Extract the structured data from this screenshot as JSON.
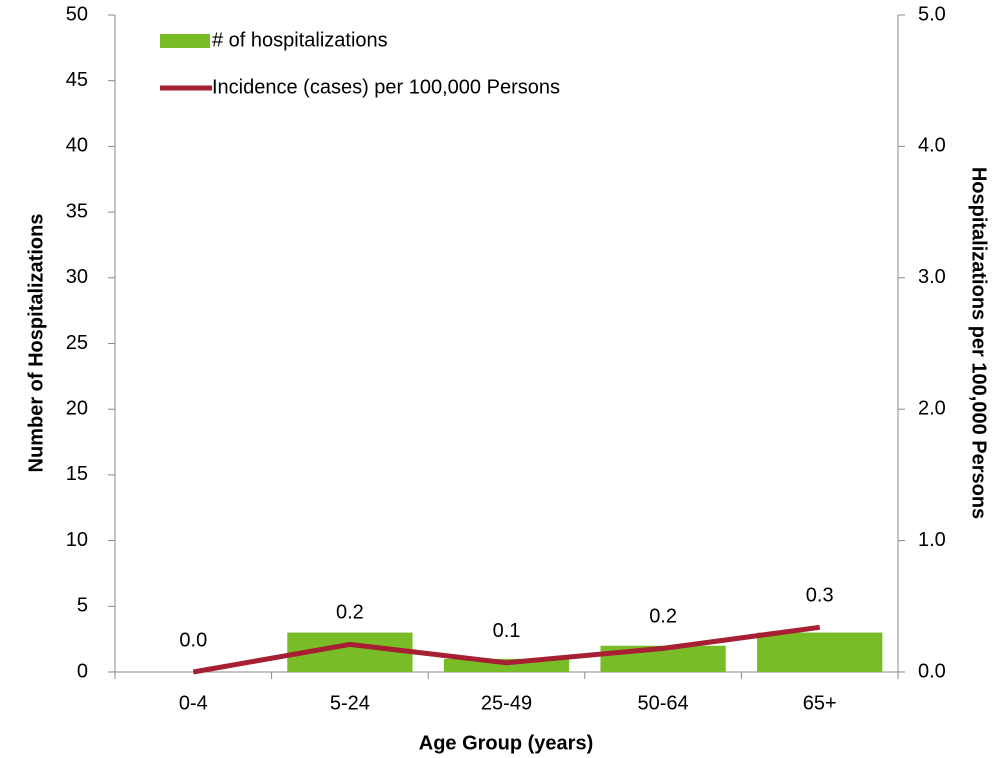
{
  "chart_data": {
    "type": "bar",
    "x_label": "Age Group (years)",
    "y_label": "Number of Hospitalizations",
    "y2_label": "Hospitalizations per 100,000 Persons",
    "categories": [
      "0-4",
      "5-24",
      "25-49",
      "50-64",
      "65+"
    ],
    "series": [
      {
        "name": "# of hospitalizations",
        "type": "bar",
        "color": "#78bc27",
        "values": [
          0,
          3,
          1,
          2,
          3
        ]
      },
      {
        "name": "Incidence (cases) per 100,000 Persons",
        "type": "line",
        "axis": "y2",
        "color": "#a61f32",
        "values": [
          0,
          0.21,
          0.07,
          0.18,
          0.34
        ],
        "value_labels": [
          "0.0",
          "0.2",
          "0.1",
          "0.2",
          "0.3"
        ]
      }
    ],
    "ylim": [
      0,
      50
    ],
    "yticks": [
      0,
      5,
      10,
      15,
      20,
      25,
      30,
      35,
      40,
      45,
      50
    ],
    "y2lim": [
      0,
      5
    ],
    "y2ticks": [
      {
        "value": 0,
        "label": "0.0"
      },
      {
        "value": 1,
        "label": "1.0"
      },
      {
        "value": 2,
        "label": "2.0"
      },
      {
        "value": 3,
        "label": "3.0"
      },
      {
        "value": 4,
        "label": "4.0"
      },
      {
        "value": 5,
        "label": "5.0"
      }
    ],
    "legend": "top-left",
    "grid": false
  }
}
